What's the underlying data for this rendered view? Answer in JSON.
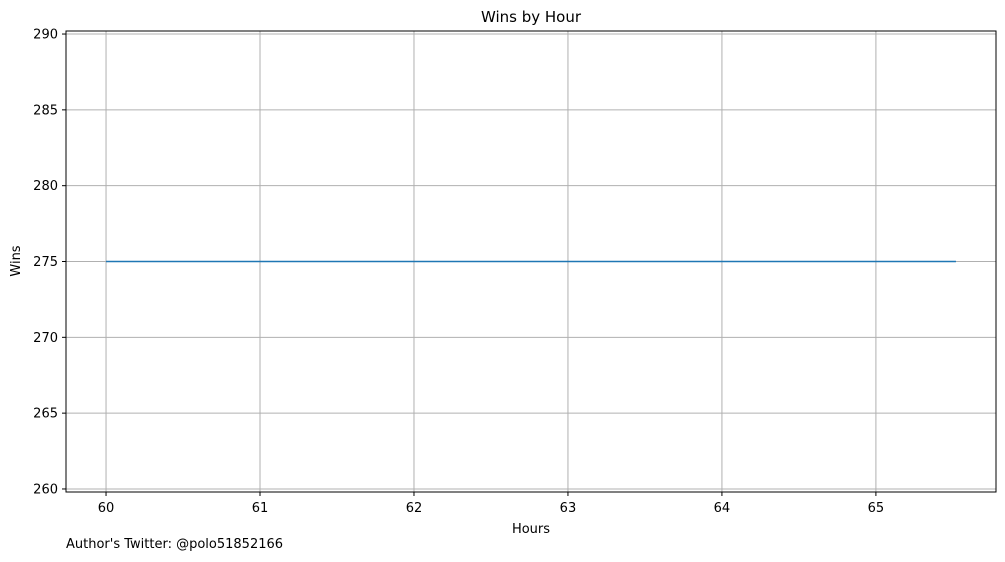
{
  "chart_data": {
    "type": "line",
    "title": "Wins by Hour",
    "xlabel": "Hours",
    "ylabel": "Wins",
    "xlim": [
      59.74,
      65.78
    ],
    "ylim": [
      259.8,
      290.2
    ],
    "xticks": [
      60,
      61,
      62,
      63,
      64,
      65
    ],
    "yticks": [
      260,
      265,
      270,
      275,
      280,
      285,
      290
    ],
    "grid": true,
    "series": [
      {
        "x": [
          60,
          65.52
        ],
        "y": [
          275,
          275
        ],
        "color": "#1f77b4"
      }
    ]
  },
  "footer": {
    "author": "Author's Twitter: @polo51852166"
  }
}
